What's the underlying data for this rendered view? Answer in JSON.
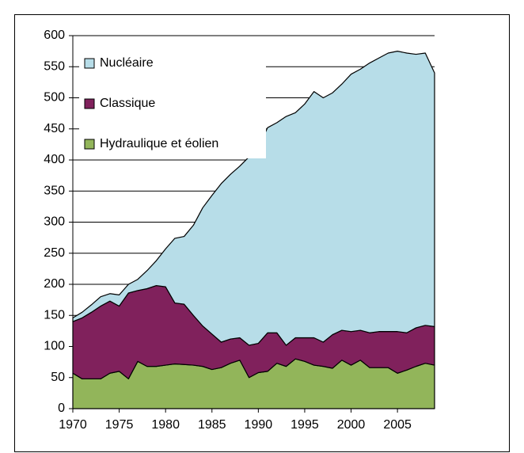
{
  "chart_data": {
    "type": "stacked_area",
    "x": [
      1970,
      1971,
      1972,
      1973,
      1974,
      1975,
      1976,
      1977,
      1978,
      1979,
      1980,
      1981,
      1982,
      1983,
      1984,
      1985,
      1986,
      1987,
      1988,
      1989,
      1990,
      1991,
      1992,
      1993,
      1994,
      1995,
      1996,
      1997,
      1998,
      1999,
      2000,
      2001,
      2002,
      2003,
      2004,
      2005,
      2006,
      2007,
      2008,
      2009
    ],
    "series": [
      {
        "name": "Hydraulique et éolien",
        "color": "#92b55a",
        "values": [
          57,
          48,
          48,
          48,
          57,
          60,
          48,
          76,
          68,
          68,
          70,
          72,
          71,
          70,
          68,
          63,
          66,
          73,
          78,
          50,
          58,
          60,
          73,
          68,
          80,
          76,
          70,
          68,
          65,
          78,
          70,
          78,
          66,
          66,
          66,
          57,
          62,
          68,
          73,
          70
        ]
      },
      {
        "name": "Classique",
        "color": "#80215c",
        "values": [
          83,
          98,
          107,
          117,
          116,
          105,
          138,
          114,
          125,
          130,
          126,
          98,
          97,
          80,
          65,
          57,
          41,
          39,
          36,
          52,
          47,
          62,
          49,
          34,
          34,
          38,
          44,
          39,
          54,
          48,
          54,
          48,
          56,
          58,
          58,
          67,
          60,
          62,
          61,
          62
        ]
      },
      {
        "name": "Nucléaire",
        "color": "#b7dde8",
        "values": [
          6,
          9,
          12,
          15,
          12,
          18,
          14,
          18,
          29,
          40,
          61,
          104,
          109,
          145,
          190,
          223,
          255,
          265,
          276,
          303,
          315,
          330,
          338,
          368,
          362,
          376,
          396,
          393,
          389,
          396,
          414,
          420,
          434,
          440,
          448,
          451,
          450,
          440,
          438,
          408
        ]
      }
    ],
    "xlim": [
      1970,
      2009
    ],
    "xticks": [
      1970,
      1975,
      1980,
      1985,
      1990,
      1995,
      2000,
      2005
    ],
    "ylim": [
      0,
      600
    ],
    "yticks": [
      0,
      50,
      100,
      150,
      200,
      250,
      300,
      350,
      400,
      450,
      500,
      550,
      600
    ],
    "grid": true,
    "legend": "top-left"
  }
}
